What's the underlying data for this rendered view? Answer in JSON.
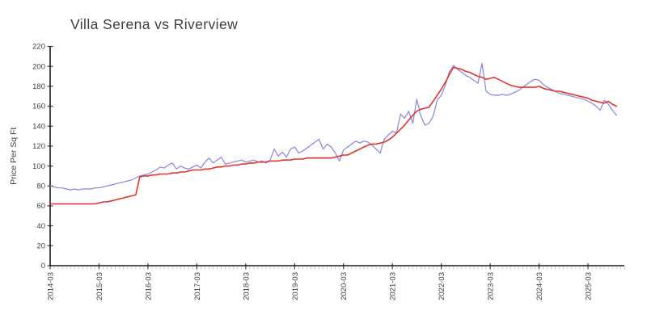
{
  "chart_data": {
    "type": "line",
    "title": "Villa Serena vs Riverview",
    "xlabel": "",
    "ylabel": "Price Per Sq Ft",
    "ylim": [
      0,
      220
    ],
    "ytick_step": 20,
    "grid": false,
    "legend": "none",
    "x_frequency": "monthly",
    "x_start": "2014-03",
    "x_end": "2025-10",
    "x_tick_labels": [
      "2014-03",
      "2015-03",
      "2016-03",
      "2017-03",
      "2018-03",
      "2019-03",
      "2020-03",
      "2021-03",
      "2022-03",
      "2023-03",
      "2024-03",
      "2025-03"
    ],
    "series": [
      {
        "name": "Villa Serena",
        "color": "#8585de",
        "width": 1.2,
        "values": [
          80,
          79,
          78,
          78,
          77,
          76,
          77,
          76,
          77,
          77,
          77,
          78,
          78,
          79,
          80,
          81,
          82,
          83,
          84,
          85,
          86,
          88,
          90,
          91,
          92,
          94,
          96,
          99,
          98,
          101,
          103,
          97,
          100,
          98,
          97,
          99,
          101,
          98,
          104,
          108,
          103,
          106,
          109,
          102,
          103,
          104,
          105,
          106,
          104,
          105,
          106,
          104,
          105,
          103,
          106,
          117,
          110,
          114,
          109,
          117,
          119,
          113,
          115,
          118,
          121,
          124,
          127,
          117,
          122,
          119,
          113,
          105,
          116,
          119,
          122,
          125,
          123,
          125,
          124,
          121,
          117,
          113,
          127,
          131,
          135,
          133,
          152,
          148,
          155,
          143,
          167,
          150,
          141,
          143,
          150,
          166,
          171,
          181,
          195,
          201,
          197,
          194,
          191,
          189,
          186,
          183,
          203,
          175,
          172,
          171,
          171,
          172,
          171,
          172,
          174,
          176,
          179,
          182,
          185,
          187,
          186,
          182,
          179,
          177,
          175,
          173,
          172,
          171,
          170,
          169,
          168,
          167,
          165,
          163,
          160,
          156,
          166,
          162,
          156,
          151
        ]
      },
      {
        "name": "Riverview",
        "color": "#e2342c",
        "width": 1.6,
        "values": [
          62,
          62,
          62,
          62,
          62,
          62,
          62,
          62,
          62,
          62,
          62,
          62,
          63,
          64,
          64,
          65,
          66,
          67,
          68,
          69,
          70,
          71,
          89,
          90,
          90,
          91,
          91,
          92,
          92,
          92,
          93,
          93,
          94,
          94,
          95,
          96,
          96,
          96,
          97,
          97,
          98,
          99,
          99,
          100,
          100,
          101,
          101,
          102,
          102,
          103,
          103,
          104,
          104,
          104,
          105,
          105,
          105,
          106,
          106,
          106,
          107,
          107,
          107,
          108,
          108,
          108,
          108,
          108,
          108,
          108,
          109,
          110,
          111,
          111,
          113,
          115,
          117,
          119,
          121,
          122,
          122,
          123,
          124,
          126,
          129,
          133,
          137,
          141,
          146,
          151,
          155,
          157,
          158,
          159,
          165,
          171,
          177,
          184,
          192,
          199,
          198,
          197,
          195,
          194,
          192,
          190,
          189,
          187,
          188,
          189,
          187,
          185,
          183,
          181,
          180,
          179,
          179,
          179,
          179,
          179,
          180,
          178,
          177,
          176,
          175,
          175,
          174,
          173,
          172,
          171,
          170,
          169,
          168,
          166,
          165,
          164,
          163,
          165,
          162,
          160
        ]
      }
    ],
    "colors": {
      "spine": "#1a1a1a",
      "major_tick": "#444444",
      "minor_tick": "#c9c9c9",
      "tick_label": "#3f3f3f"
    }
  }
}
